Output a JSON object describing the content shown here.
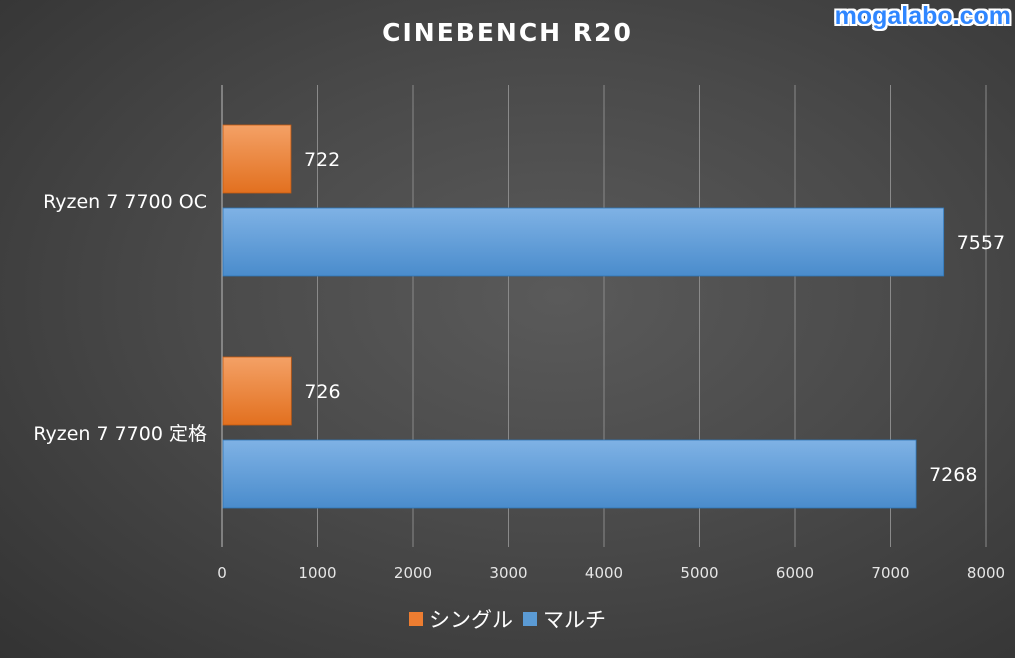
{
  "watermark": "mogalabo.com",
  "chart_data": {
    "type": "bar",
    "orientation": "horizontal",
    "title": "CINEBENCH R20",
    "categories": [
      "Ryzen 7 7700 OC",
      "Ryzen 7 7700 定格"
    ],
    "series": [
      {
        "name": "シングル",
        "values": [
          722,
          726
        ],
        "color": "#ed7d31"
      },
      {
        "name": "マルチ",
        "values": [
          7557,
          7268
        ],
        "color": "#5b9bd5"
      }
    ],
    "xlim": [
      0,
      8000
    ],
    "ticks": [
      0,
      1000,
      2000,
      3000,
      4000,
      5000,
      6000,
      7000,
      8000
    ],
    "grid": true,
    "data_labels": true,
    "legend_position": "bottom"
  },
  "colors": {
    "background": "#4a4a4a",
    "gridline": "#8a8a8a",
    "text": "#ffffff",
    "tick_text": "#e6e6e6",
    "watermark": "#2f86ff"
  }
}
